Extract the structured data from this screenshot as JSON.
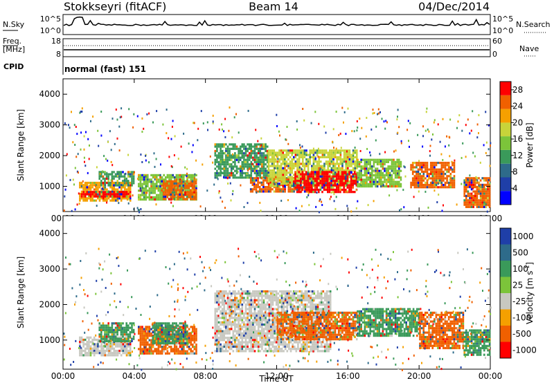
{
  "header": {
    "station": "Stokkseyri (fitACF)",
    "beam": "Beam 14",
    "date": "04/Dec/2014"
  },
  "panels": {
    "nsky": {
      "label": "N.Sky",
      "scale_top": "10^5",
      "scale_bottom": "10^0"
    },
    "nsearch": {
      "label": "N.Search",
      "scale_top": "10^5",
      "scale_bottom": "10^0"
    },
    "freq": {
      "label_line1": "Freq.",
      "label_line2": "[MHz]",
      "scale_top": "18",
      "scale_bottom": "8"
    },
    "nave": {
      "label": "Nave",
      "scale_top": "60",
      "scale_bottom": "0"
    },
    "cpid": {
      "label": "CPID",
      "value": "normal (fast) 151"
    }
  },
  "colors": {
    "power_scale": [
      "#0000ff",
      "#1f3fa8",
      "#2e6b8a",
      "#3a9a5a",
      "#7cc43a",
      "#c8d43a",
      "#f5a000",
      "#f06000",
      "#ff0000"
    ],
    "velocity_scale": [
      "#1f3fa8",
      "#2e6b8a",
      "#3a9a5a",
      "#7cc43a",
      "#c8c8c0",
      "#f5a000",
      "#f06000",
      "#ff0000"
    ]
  },
  "chart_data": [
    {
      "type": "heatmap",
      "title": "Power",
      "xlabel": "",
      "ylabel": "Slant Range [km]",
      "x_ticks": [
        "00:00",
        "04:00",
        "08:00",
        "12:00",
        "16:00",
        "20:00",
        "00:00"
      ],
      "xlim_hours": [
        0,
        24
      ],
      "y_ticks": [
        1000,
        2000,
        3000,
        4000
      ],
      "ylim": [
        180,
        4500
      ],
      "colorbar": {
        "label": "Power [dB]",
        "ticks": [
          4,
          8,
          12,
          16,
          20,
          24,
          28
        ],
        "range": [
          0,
          30
        ]
      },
      "regions": [
        {
          "t0": 0.9,
          "t1": 3.8,
          "r0": 550,
          "r1": 1150,
          "value": 22
        },
        {
          "t0": 1.0,
          "t1": 3.8,
          "r0": 650,
          "r1": 850,
          "value": 28
        },
        {
          "t0": 2.0,
          "t1": 4.0,
          "r0": 1000,
          "r1": 1500,
          "value": 10
        },
        {
          "t0": 4.2,
          "t1": 7.5,
          "r0": 550,
          "r1": 1400,
          "value": 14
        },
        {
          "t0": 5.5,
          "t1": 7.5,
          "r0": 600,
          "r1": 1200,
          "value": 26
        },
        {
          "t0": 8.5,
          "t1": 11.5,
          "r0": 1300,
          "r1": 2400,
          "value": 12
        },
        {
          "t0": 10.5,
          "t1": 14.0,
          "r0": 800,
          "r1": 1300,
          "value": 26
        },
        {
          "t0": 11.5,
          "t1": 16.5,
          "r0": 1000,
          "r1": 2200,
          "value": 18
        },
        {
          "t0": 13.0,
          "t1": 16.5,
          "r0": 800,
          "r1": 1500,
          "value": 28
        },
        {
          "t0": 16.5,
          "t1": 19.0,
          "r0": 1000,
          "r1": 1900,
          "value": 14
        },
        {
          "t0": 19.5,
          "t1": 22.0,
          "r0": 1000,
          "r1": 1800,
          "value": 26
        },
        {
          "t0": 22.5,
          "t1": 24.0,
          "r0": 300,
          "r1": 1300,
          "value": 24
        }
      ]
    },
    {
      "type": "heatmap",
      "title": "Velocity",
      "xlabel": "Time UT",
      "ylabel": "Slant Range [km]",
      "x_ticks": [
        "00:00",
        "04:00",
        "08:00",
        "12:00",
        "16:00",
        "20:00",
        "00:00"
      ],
      "xlim_hours": [
        0,
        24
      ],
      "y_ticks": [
        1000,
        2000,
        3000,
        4000
      ],
      "ylim": [
        180,
        4500
      ],
      "colorbar": {
        "label": "Velocity [m s^-1]",
        "ticks": [
          1000,
          500,
          100,
          25,
          -25,
          -100,
          -500,
          -1000
        ]
      },
      "regions": [
        {
          "t0": 0.9,
          "t1": 3.8,
          "r0": 600,
          "r1": 1100,
          "value": 0
        },
        {
          "t0": 2.0,
          "t1": 4.0,
          "r0": 1000,
          "r1": 1500,
          "value": 150
        },
        {
          "t0": 4.2,
          "t1": 7.5,
          "r0": 600,
          "r1": 1400,
          "value": -200
        },
        {
          "t0": 5.0,
          "t1": 7.0,
          "r0": 900,
          "r1": 1500,
          "value": 150
        },
        {
          "t0": 8.5,
          "t1": 15.0,
          "r0": 700,
          "r1": 2400,
          "value": 0
        },
        {
          "t0": 12.0,
          "t1": 16.5,
          "r0": 1000,
          "r1": 1800,
          "value": -300
        },
        {
          "t0": 16.5,
          "t1": 20.0,
          "r0": 1100,
          "r1": 1900,
          "value": 300
        },
        {
          "t0": 20.0,
          "t1": 22.5,
          "r0": 800,
          "r1": 1800,
          "value": -300
        },
        {
          "t0": 22.5,
          "t1": 24.0,
          "r0": 600,
          "r1": 1300,
          "value": 400
        }
      ]
    }
  ]
}
